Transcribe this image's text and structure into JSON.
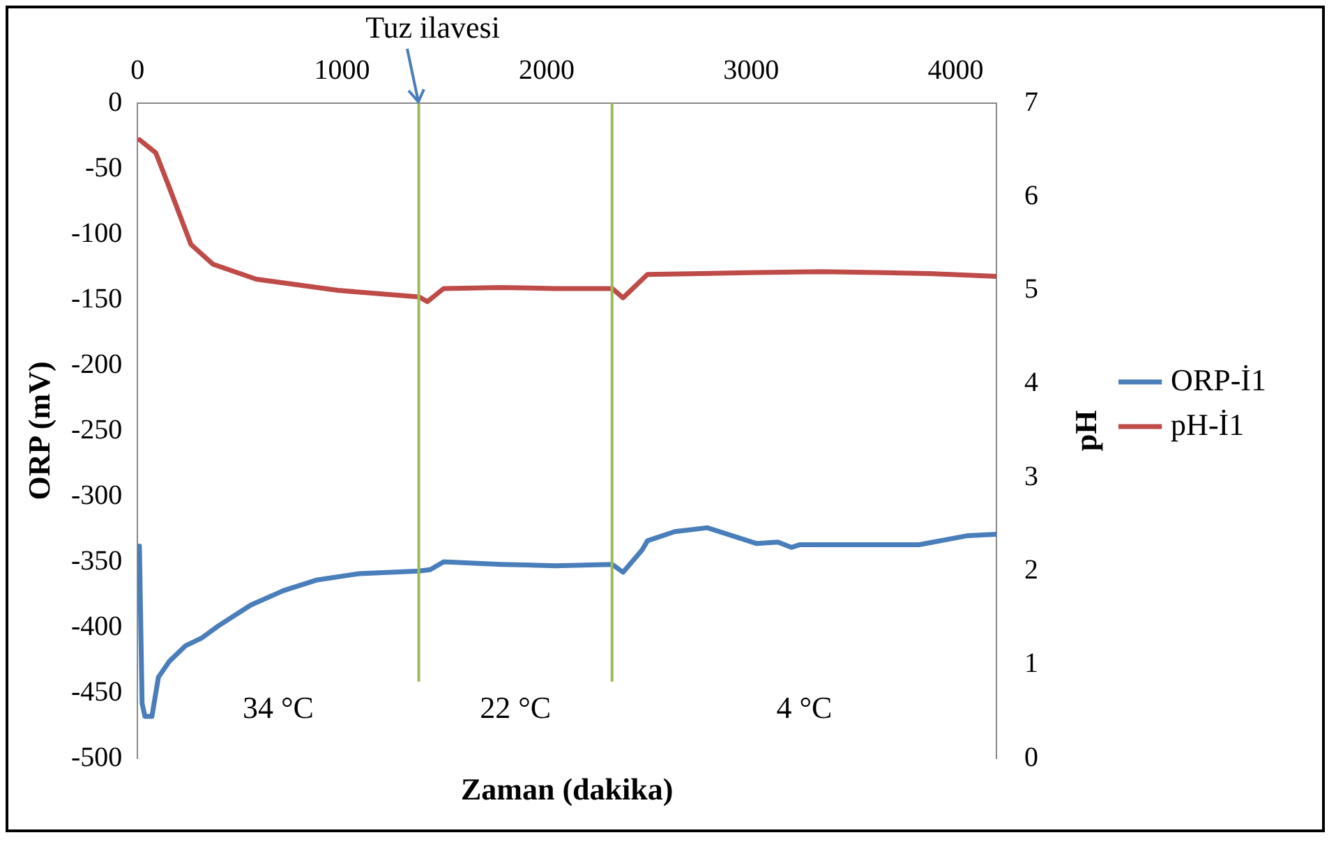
{
  "chart_data": {
    "type": "line",
    "xlabel": "Zaman (dakika)",
    "ylabel": "ORP (mV)",
    "y2label": "pH",
    "xlim": [
      0,
      4200
    ],
    "xticks": [
      0,
      1000,
      2000,
      3000,
      4000
    ],
    "ylim": [
      -500,
      0
    ],
    "yticks": [
      -500,
      -450,
      -400,
      -350,
      -300,
      -250,
      -200,
      -150,
      -100,
      -50,
      0
    ],
    "y2lim": [
      0,
      7
    ],
    "y2ticks": [
      0,
      1,
      2,
      3,
      4,
      5,
      6,
      7
    ],
    "legend": "right",
    "grid": false,
    "marker": "none",
    "line_style": "solid",
    "series": [
      {
        "name": "ORP-İ1",
        "color": "#4a7ebb",
        "x": [
          9,
          22,
          36,
          70,
          102,
          155,
          235,
          315,
          394,
          554,
          713,
          873,
          1085,
          1377,
          1431,
          1497,
          1776,
          2042,
          2321,
          2374,
          2467,
          2493,
          2626,
          2786,
          3025,
          3131,
          3197,
          3237,
          3822,
          4061,
          4200
        ],
        "values": [
          -338,
          -458,
          -468,
          -468,
          -438,
          -426,
          -414,
          -408,
          -399,
          -383,
          -372,
          -364,
          -359,
          -357,
          -356,
          -350,
          -352,
          -353,
          -352,
          -358,
          -341,
          -334,
          -327,
          -324,
          -336,
          -335,
          -339,
          -337,
          -337,
          -330,
          -329
        ]
      },
      {
        "name": "pH-İ1",
        "color": "#be4b48",
        "axis": "y2",
        "x": [
          9,
          89,
          155,
          261,
          368,
          580,
          979,
          1377,
          1417,
          1497,
          1776,
          2042,
          2321,
          2374,
          2493,
          3025,
          3344,
          3875,
          4200
        ],
        "values": [
          6.61,
          6.47,
          6.1,
          5.49,
          5.28,
          5.12,
          5.0,
          4.93,
          4.88,
          5.02,
          5.03,
          5.02,
          5.02,
          4.92,
          5.17,
          5.19,
          5.2,
          5.18,
          5.15
        ]
      }
    ],
    "ref_lines": [
      {
        "axis": "x",
        "value": 1375,
        "color": "#9bbb59"
      },
      {
        "axis": "x",
        "value": 2320,
        "color": "#9bbb59"
      }
    ],
    "annotations": [
      {
        "text": "Tuz ilavesi",
        "x": 1375,
        "y": 0
      },
      "34 °C",
      "22 °C",
      "4 °C"
    ]
  }
}
